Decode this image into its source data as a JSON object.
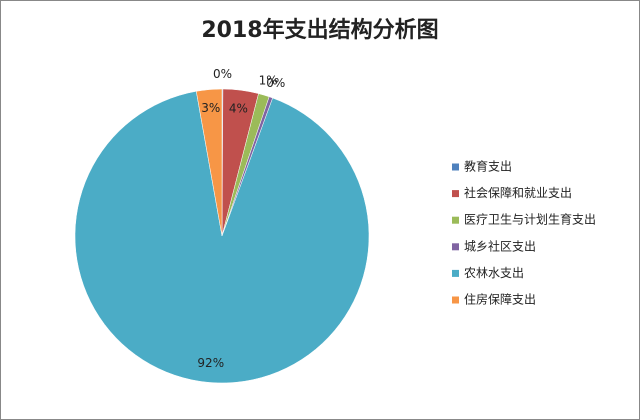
{
  "chart_data": {
    "type": "pie",
    "title": "2018年支出结构分析图",
    "categories": [
      "教育支出",
      "社会保障和就业支出",
      "医疗卫生与计划生育支出",
      "城乡社区支出",
      "农林水支出",
      "住房保障支出"
    ],
    "values": [
      0.1,
      3.9,
      1.2,
      0.4,
      91.6,
      2.8
    ],
    "value_labels": [
      "0%",
      "4%",
      "1%",
      "0%",
      "92%",
      "3%"
    ],
    "colors": [
      "#4f81bd",
      "#c0504d",
      "#9bbb59",
      "#8064a2",
      "#4bacc6",
      "#f79646"
    ],
    "legend": "right"
  }
}
